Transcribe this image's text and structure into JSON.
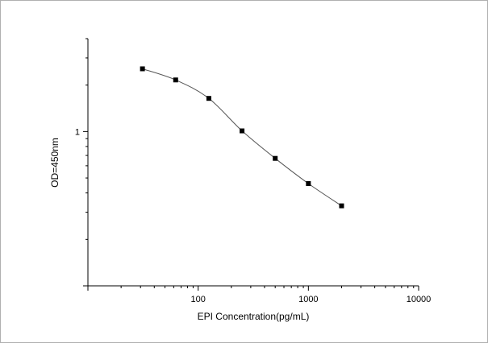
{
  "chart_data": {
    "type": "line",
    "xlabel": "EPI Concentration(pg/mL)",
    "ylabel": "OD=450nm",
    "x_scale": "log",
    "y_scale": "log",
    "xlim": [
      10,
      10000
    ],
    "ylim": [
      0.1,
      4
    ],
    "x_ticks": [
      100,
      1000,
      10000
    ],
    "x_tick_labels": [
      "100",
      "1000",
      "10000"
    ],
    "y_ticks": [
      1
    ],
    "y_tick_labels": [
      "1"
    ],
    "grid": false,
    "series": [
      {
        "marker": "square",
        "line": "smooth",
        "color": "#000000",
        "line_color": "#555555",
        "points": [
          {
            "x": 31.25,
            "y": 2.55
          },
          {
            "x": 62.5,
            "y": 2.16
          },
          {
            "x": 125,
            "y": 1.64
          },
          {
            "x": 250,
            "y": 1.01
          },
          {
            "x": 500,
            "y": 0.67
          },
          {
            "x": 1000,
            "y": 0.46
          },
          {
            "x": 2000,
            "y": 0.33
          }
        ]
      }
    ]
  }
}
